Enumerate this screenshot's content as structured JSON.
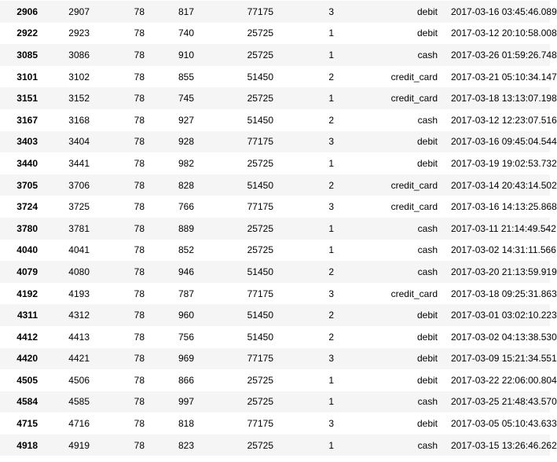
{
  "table": {
    "rows": [
      {
        "index": "2906",
        "cells": [
          "2907",
          "78",
          "817",
          "77175",
          "3",
          "debit",
          "2017-03-16 03:45:46.089"
        ]
      },
      {
        "index": "2922",
        "cells": [
          "2923",
          "78",
          "740",
          "25725",
          "1",
          "debit",
          "2017-03-12 20:10:58.008"
        ]
      },
      {
        "index": "3085",
        "cells": [
          "3086",
          "78",
          "910",
          "25725",
          "1",
          "cash",
          "2017-03-26 01:59:26.748"
        ]
      },
      {
        "index": "3101",
        "cells": [
          "3102",
          "78",
          "855",
          "51450",
          "2",
          "credit_card",
          "2017-03-21 05:10:34.147"
        ]
      },
      {
        "index": "3151",
        "cells": [
          "3152",
          "78",
          "745",
          "25725",
          "1",
          "credit_card",
          "2017-03-18 13:13:07.198"
        ]
      },
      {
        "index": "3167",
        "cells": [
          "3168",
          "78",
          "927",
          "51450",
          "2",
          "cash",
          "2017-03-12 12:23:07.516"
        ]
      },
      {
        "index": "3403",
        "cells": [
          "3404",
          "78",
          "928",
          "77175",
          "3",
          "debit",
          "2017-03-16 09:45:04.544"
        ]
      },
      {
        "index": "3440",
        "cells": [
          "3441",
          "78",
          "982",
          "25725",
          "1",
          "debit",
          "2017-03-19 19:02:53.732"
        ]
      },
      {
        "index": "3705",
        "cells": [
          "3706",
          "78",
          "828",
          "51450",
          "2",
          "credit_card",
          "2017-03-14 20:43:14.502"
        ]
      },
      {
        "index": "3724",
        "cells": [
          "3725",
          "78",
          "766",
          "77175",
          "3",
          "credit_card",
          "2017-03-16 14:13:25.868"
        ]
      },
      {
        "index": "3780",
        "cells": [
          "3781",
          "78",
          "889",
          "25725",
          "1",
          "cash",
          "2017-03-11 21:14:49.542"
        ]
      },
      {
        "index": "4040",
        "cells": [
          "4041",
          "78",
          "852",
          "25725",
          "1",
          "cash",
          "2017-03-02 14:31:11.566"
        ]
      },
      {
        "index": "4079",
        "cells": [
          "4080",
          "78",
          "946",
          "51450",
          "2",
          "cash",
          "2017-03-20 21:13:59.919"
        ]
      },
      {
        "index": "4192",
        "cells": [
          "4193",
          "78",
          "787",
          "77175",
          "3",
          "credit_card",
          "2017-03-18 09:25:31.863"
        ]
      },
      {
        "index": "4311",
        "cells": [
          "4312",
          "78",
          "960",
          "51450",
          "2",
          "debit",
          "2017-03-01 03:02:10.223"
        ]
      },
      {
        "index": "4412",
        "cells": [
          "4413",
          "78",
          "756",
          "51450",
          "2",
          "debit",
          "2017-03-02 04:13:38.530"
        ]
      },
      {
        "index": "4420",
        "cells": [
          "4421",
          "78",
          "969",
          "77175",
          "3",
          "debit",
          "2017-03-09 15:21:34.551"
        ]
      },
      {
        "index": "4505",
        "cells": [
          "4506",
          "78",
          "866",
          "25725",
          "1",
          "debit",
          "2017-03-22 22:06:00.804"
        ]
      },
      {
        "index": "4584",
        "cells": [
          "4585",
          "78",
          "997",
          "25725",
          "1",
          "cash",
          "2017-03-25 21:48:43.570"
        ]
      },
      {
        "index": "4715",
        "cells": [
          "4716",
          "78",
          "818",
          "77175",
          "3",
          "debit",
          "2017-03-05 05:10:43.633"
        ]
      },
      {
        "index": "4918",
        "cells": [
          "4919",
          "78",
          "823",
          "25725",
          "1",
          "cash",
          "2017-03-15 13:26:46.262"
        ]
      }
    ]
  }
}
